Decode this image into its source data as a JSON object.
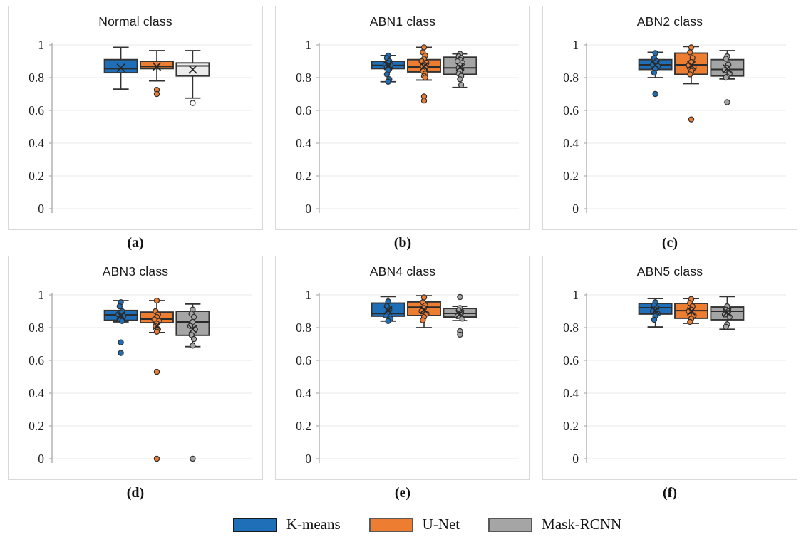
{
  "chart_data": {
    "type": "boxplot-grid",
    "layout": {
      "rows": 2,
      "cols": 3,
      "legend_position": "bottom-center",
      "grid_on": true
    },
    "ylim": [
      0,
      1
    ],
    "yticks": {
      "values": [
        1,
        0.8,
        0.6,
        0.4,
        0.2,
        0
      ],
      "labels": [
        "1",
        "0.8",
        "0.6",
        "0.4",
        "0.2",
        "0"
      ]
    },
    "colors": {
      "kmeans": "#1E6FB8",
      "unet": "#ED7D31",
      "mask": "#A5A5A5",
      "mask_light": "#ECECEC",
      "grid": "#EDEDED",
      "axis": "#ADADAD",
      "panel_border": "#D9D9D9",
      "stroke": "#333333"
    },
    "panels": [
      {
        "id": "a",
        "title": "Normal class",
        "caption": "(a)",
        "series": [
          {
            "name": "K-means",
            "fill": "#1E6FB8",
            "whislo": 0.73,
            "q1": 0.83,
            "med": 0.855,
            "mean": 0.86,
            "q3": 0.91,
            "whishi": 0.985,
            "outliers": [],
            "points": []
          },
          {
            "name": "U-Net",
            "fill": "#ED7D31",
            "whislo": 0.78,
            "q1": 0.855,
            "med": 0.868,
            "mean": 0.868,
            "q3": 0.9,
            "whishi": 0.965,
            "outliers": [
              0.725,
              0.7
            ],
            "points": []
          },
          {
            "name": "Mask-RCNN",
            "fill": "#ECECEC",
            "point_fill": "#FFFFFF",
            "whislo": 0.675,
            "q1": 0.81,
            "med": 0.872,
            "mean": 0.85,
            "q3": 0.89,
            "whishi": 0.965,
            "outliers": [
              0.645
            ],
            "points": []
          }
        ]
      },
      {
        "id": "b",
        "title": "ABN1 class",
        "caption": "(b)",
        "series": [
          {
            "name": "K-means",
            "fill": "#1E6FB8",
            "whislo": 0.775,
            "q1": 0.855,
            "med": 0.875,
            "mean": 0.872,
            "q3": 0.9,
            "whishi": 0.935,
            "outliers": [],
            "points": [
              0.935,
              0.92,
              0.9,
              0.89,
              0.88,
              0.875,
              0.87,
              0.865,
              0.855,
              0.845,
              0.82,
              0.79,
              0.775
            ]
          },
          {
            "name": "U-Net",
            "fill": "#ED7D31",
            "whislo": 0.785,
            "q1": 0.835,
            "med": 0.865,
            "mean": 0.868,
            "q3": 0.91,
            "whishi": 0.985,
            "outliers": [
              0.685,
              0.66
            ],
            "points": [
              0.985,
              0.955,
              0.935,
              0.915,
              0.9,
              0.89,
              0.88,
              0.87,
              0.86,
              0.85,
              0.84,
              0.825,
              0.81,
              0.8
            ]
          },
          {
            "name": "Mask-RCNN",
            "fill": "#A5A5A5",
            "whislo": 0.74,
            "q1": 0.82,
            "med": 0.86,
            "mean": 0.865,
            "q3": 0.925,
            "whishi": 0.945,
            "outliers": [],
            "points": [
              0.945,
              0.93,
              0.92,
              0.91,
              0.9,
              0.89,
              0.875,
              0.86,
              0.85,
              0.84,
              0.825,
              0.81,
              0.79,
              0.755
            ]
          }
        ]
      },
      {
        "id": "c",
        "title": "ABN2 class",
        "caption": "(c)",
        "series": [
          {
            "name": "K-means",
            "fill": "#1E6FB8",
            "whislo": 0.8,
            "q1": 0.85,
            "med": 0.878,
            "mean": 0.877,
            "q3": 0.91,
            "whishi": 0.955,
            "outliers": [
              0.7
            ],
            "points": [
              0.95,
              0.92,
              0.9,
              0.89,
              0.88,
              0.87,
              0.855,
              0.83
            ]
          },
          {
            "name": "U-Net",
            "fill": "#ED7D31",
            "whislo": 0.763,
            "q1": 0.82,
            "med": 0.878,
            "mean": 0.875,
            "q3": 0.95,
            "whishi": 0.99,
            "outliers": [
              0.545
            ],
            "points": [
              0.985,
              0.955,
              0.92,
              0.895,
              0.875,
              0.86,
              0.84,
              0.82
            ]
          },
          {
            "name": "Mask-RCNN",
            "fill": "#A5A5A5",
            "whislo": 0.792,
            "q1": 0.81,
            "med": 0.85,
            "mean": 0.855,
            "q3": 0.91,
            "whishi": 0.965,
            "outliers": [
              0.65
            ],
            "points": [
              0.93,
              0.915,
              0.88,
              0.86,
              0.845,
              0.825,
              0.805,
              0.8
            ]
          }
        ]
      },
      {
        "id": "d",
        "title": "ABN3 class",
        "caption": "(d)",
        "series": [
          {
            "name": "K-means",
            "fill": "#1E6FB8",
            "whislo": 0.835,
            "q1": 0.845,
            "med": 0.878,
            "mean": 0.872,
            "q3": 0.905,
            "whishi": 0.965,
            "outliers": [
              0.71,
              0.645
            ],
            "points": [
              0.955,
              0.93,
              0.9,
              0.89,
              0.88,
              0.87,
              0.86,
              0.85,
              0.84
            ]
          },
          {
            "name": "U-Net",
            "fill": "#ED7D31",
            "whislo": 0.77,
            "q1": 0.83,
            "med": 0.852,
            "mean": 0.81,
            "q3": 0.895,
            "whishi": 0.965,
            "outliers": [
              0.53,
              0.0
            ],
            "points": [
              0.965,
              0.9,
              0.88,
              0.865,
              0.85,
              0.84,
              0.825,
              0.81,
              0.79,
              0.775
            ]
          },
          {
            "name": "Mask-RCNN",
            "fill": "#A5A5A5",
            "whislo": 0.684,
            "q1": 0.753,
            "med": 0.835,
            "mean": 0.79,
            "q3": 0.9,
            "whishi": 0.944,
            "outliers": [
              0.0
            ],
            "points": [
              0.91,
              0.885,
              0.865,
              0.835,
              0.81,
              0.79,
              0.77,
              0.755,
              0.73,
              0.69
            ]
          }
        ]
      },
      {
        "id": "e",
        "title": "ABN4 class",
        "caption": "(e)",
        "series": [
          {
            "name": "K-means",
            "fill": "#1E6FB8",
            "whislo": 0.84,
            "q1": 0.87,
            "med": 0.886,
            "mean": 0.905,
            "q3": 0.95,
            "whishi": 0.99,
            "outliers": [],
            "points": [
              0.96,
              0.93,
              0.91,
              0.895,
              0.875,
              0.855,
              0.84
            ]
          },
          {
            "name": "U-Net",
            "fill": "#ED7D31",
            "whislo": 0.8,
            "q1": 0.874,
            "med": 0.925,
            "mean": 0.91,
            "q3": 0.957,
            "whishi": 0.995,
            "outliers": [],
            "points": [
              0.985,
              0.955,
              0.935,
              0.92,
              0.9,
              0.885,
              0.865,
              0.845
            ]
          },
          {
            "name": "Mask-RCNN",
            "fill": "#A5A5A5",
            "whislo": 0.843,
            "q1": 0.865,
            "med": 0.887,
            "mean": 0.885,
            "q3": 0.917,
            "whishi": 0.93,
            "outliers": [
              0.987,
              0.778,
              0.757
            ],
            "points": [
              0.92,
              0.905,
              0.89,
              0.88,
              0.87,
              0.855
            ]
          }
        ]
      },
      {
        "id": "f",
        "title": "ABN5 class",
        "caption": "(f)",
        "series": [
          {
            "name": "K-means",
            "fill": "#1E6FB8",
            "whislo": 0.804,
            "q1": 0.883,
            "med": 0.922,
            "mean": 0.905,
            "q3": 0.948,
            "whishi": 0.978,
            "outliers": [],
            "points": [
              0.955,
              0.935,
              0.92,
              0.91,
              0.9,
              0.885,
              0.87,
              0.848
            ]
          },
          {
            "name": "U-Net",
            "fill": "#ED7D31",
            "whislo": 0.826,
            "q1": 0.857,
            "med": 0.904,
            "mean": 0.9,
            "q3": 0.948,
            "whishi": 0.978,
            "outliers": [],
            "points": [
              0.975,
              0.95,
              0.93,
              0.91,
              0.9,
              0.875,
              0.855,
              0.835
            ]
          },
          {
            "name": "Mask-RCNN",
            "fill": "#A5A5A5",
            "whislo": 0.79,
            "q1": 0.848,
            "med": 0.9,
            "mean": 0.893,
            "q3": 0.926,
            "whishi": 0.99,
            "outliers": [],
            "points": [
              0.93,
              0.91,
              0.9,
              0.89,
              0.88,
              0.865,
              0.82,
              0.805
            ]
          }
        ]
      }
    ],
    "legend": {
      "items": [
        {
          "label": "K-means",
          "fill": "#1E6FB8",
          "border": "#1a1a1a"
        },
        {
          "label": "U-Net",
          "fill": "#ED7D31",
          "border": "#595959"
        },
        {
          "label": "Mask-RCNN",
          "fill": "#A5A5A5",
          "border": "#595959"
        }
      ]
    }
  }
}
